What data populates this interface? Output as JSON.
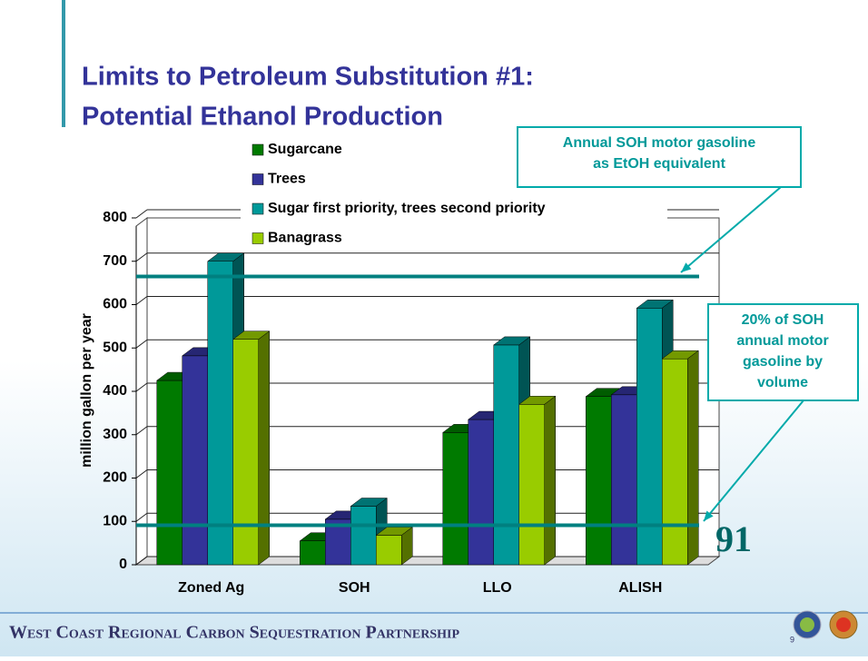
{
  "chart_data": {
    "type": "bar3d",
    "title": [
      "Limits to Petroleum Substitution #1:",
      "Potential Ethanol Production"
    ],
    "y_label": "million gallon per year",
    "categories": [
      "Zoned Ag",
      "SOH",
      "LLO",
      "ALISH"
    ],
    "series": [
      {
        "name": "Sugarcane",
        "color": "#007a00",
        "values": [
          425,
          55,
          305,
          388
        ]
      },
      {
        "name": "Trees",
        "color": "#333399",
        "values": [
          482,
          105,
          335,
          392
        ]
      },
      {
        "name": "Sugar first priority, trees second priority",
        "color": "#009999",
        "values": [
          700,
          135,
          507,
          592
        ]
      },
      {
        "name": "Banagrass",
        "color": "#99cc00",
        "values": [
          520,
          68,
          370,
          475
        ]
      }
    ],
    "ylim": [
      0,
      800
    ],
    "yticks": [
      0,
      100,
      200,
      300,
      400,
      500,
      600,
      700,
      800
    ],
    "grid": true,
    "reference_lines": [
      665,
      91
    ],
    "annotations": [
      {
        "lines": [
          "Annual SOH motor gasoline",
          "as EtOH equivalent"
        ]
      },
      {
        "lines": [
          "20% of SOH",
          "annual motor",
          "gasoline by",
          "volume"
        ]
      }
    ]
  },
  "footer": "West Coast Regional Carbon Sequestration Partnership",
  "page_number": 9
}
